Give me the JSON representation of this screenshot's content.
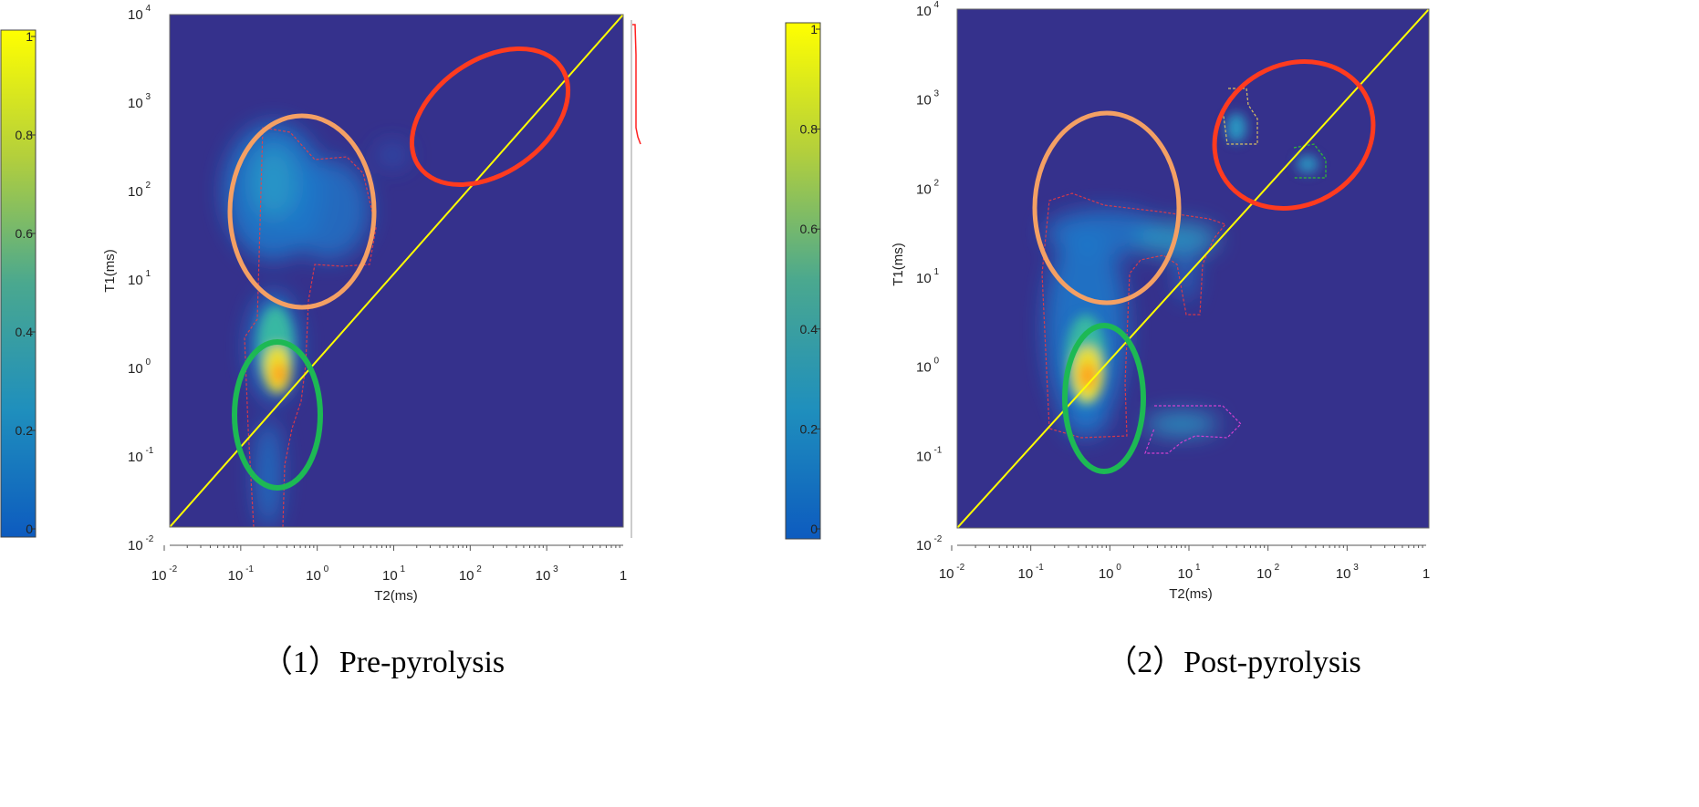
{
  "panels": [
    {
      "caption": "（1）Pre-pyrolysis",
      "xlabel": "T2(ms)",
      "ylabel": "T1(ms)",
      "x_ticks": [
        {
          "base": "10",
          "exp": "-2"
        },
        {
          "base": "10",
          "exp": "-1"
        },
        {
          "base": "10",
          "exp": "0"
        },
        {
          "base": "10",
          "exp": "1"
        },
        {
          "base": "10",
          "exp": "2"
        },
        {
          "base": "10",
          "exp": "3"
        },
        {
          "base": "1",
          "exp": ""
        }
      ],
      "y_ticks": [
        {
          "base": "10",
          "exp": "-2"
        },
        {
          "base": "10",
          "exp": "-1"
        },
        {
          "base": "10",
          "exp": "0"
        },
        {
          "base": "10",
          "exp": "1"
        },
        {
          "base": "10",
          "exp": "2"
        },
        {
          "base": "10",
          "exp": "3"
        },
        {
          "base": "10",
          "exp": "4"
        }
      ],
      "colorbar_ticks": [
        "1",
        "0.8",
        "0.6",
        "0.4",
        "0.2",
        "0"
      ]
    },
    {
      "caption": "（2）Post-pyrolysis",
      "xlabel": "T2(ms)",
      "ylabel": "T1(ms)",
      "x_ticks": [
        {
          "base": "10",
          "exp": "-2"
        },
        {
          "base": "10",
          "exp": "-1"
        },
        {
          "base": "10",
          "exp": "0"
        },
        {
          "base": "10",
          "exp": "1"
        },
        {
          "base": "10",
          "exp": "2"
        },
        {
          "base": "10",
          "exp": "3"
        },
        {
          "base": "1",
          "exp": ""
        }
      ],
      "y_ticks": [
        {
          "base": "10",
          "exp": "-2"
        },
        {
          "base": "10",
          "exp": "-1"
        },
        {
          "base": "10",
          "exp": "0"
        },
        {
          "base": "10",
          "exp": "1"
        },
        {
          "base": "10",
          "exp": "2"
        },
        {
          "base": "10",
          "exp": "3"
        },
        {
          "base": "10",
          "exp": "4"
        }
      ],
      "colorbar_ticks": [
        "1",
        "0.8",
        "0.6",
        "0.4",
        "0.2",
        "0"
      ]
    }
  ],
  "chart_data": [
    {
      "type": "heatmap",
      "title": "（1）Pre-pyrolysis",
      "xlabel": "T2(ms)",
      "ylabel": "T1(ms)",
      "x_scale": "log",
      "y_scale": "log",
      "xlim": [
        0.01,
        10000
      ],
      "ylim": [
        0.01,
        10000
      ],
      "colorbar_range": [
        0,
        1
      ],
      "background_color": "#35318c",
      "diagonal_line": {
        "x": [
          0.01,
          10000
        ],
        "y": [
          0.01,
          10000
        ],
        "color": "#ffff00"
      },
      "intensity_regions": [
        {
          "t2": 0.3,
          "t1": 0.7,
          "intensity": 0.95
        },
        {
          "t2": 0.25,
          "t1": 3,
          "intensity": 0.6
        },
        {
          "t2": 0.25,
          "t1": 0.03,
          "intensity": 0.35
        },
        {
          "t2": 0.4,
          "t1": 60,
          "intensity": 0.45
        },
        {
          "t2": 1.5,
          "t1": 60,
          "intensity": 0.3
        }
      ],
      "ellipses": [
        {
          "color": "#ff3b1f",
          "center": [
            300,
            300
          ]
        },
        {
          "color": "#f4a064",
          "center": [
            0.8,
            60
          ]
        },
        {
          "color": "#1db954",
          "center": [
            0.3,
            0.3
          ]
        }
      ]
    },
    {
      "type": "heatmap",
      "title": "（2）Post-pyrolysis",
      "xlabel": "T2(ms)",
      "ylabel": "T1(ms)",
      "x_scale": "log",
      "y_scale": "log",
      "xlim": [
        0.01,
        10000
      ],
      "ylim": [
        0.01,
        10000
      ],
      "colorbar_range": [
        0,
        1
      ],
      "background_color": "#35318c",
      "diagonal_line": {
        "x": [
          0.01,
          10000
        ],
        "y": [
          0.01,
          10000
        ],
        "color": "#ffff00"
      },
      "intensity_regions": [
        {
          "t2": 0.45,
          "t1": 0.8,
          "intensity": 0.95
        },
        {
          "t2": 0.3,
          "t1": 3,
          "intensity": 0.55
        },
        {
          "t2": 1.5,
          "t1": 25,
          "intensity": 0.4
        },
        {
          "t2": 12,
          "t1": 25,
          "intensity": 0.35
        },
        {
          "t2": 8,
          "t1": 3,
          "intensity": 0.3
        },
        {
          "t2": 10,
          "t1": 0.17,
          "intensity": 0.35
        },
        {
          "t2": 33,
          "t1": 600,
          "intensity": 0.35
        },
        {
          "t2": 250,
          "t1": 220,
          "intensity": 0.3
        }
      ],
      "ellipses": [
        {
          "color": "#ff3b1f",
          "center": [
            150,
            700
          ]
        },
        {
          "color": "#f4a064",
          "center": [
            0.8,
            60
          ]
        },
        {
          "color": "#1db954",
          "center": [
            0.6,
            0.5
          ]
        }
      ]
    }
  ]
}
